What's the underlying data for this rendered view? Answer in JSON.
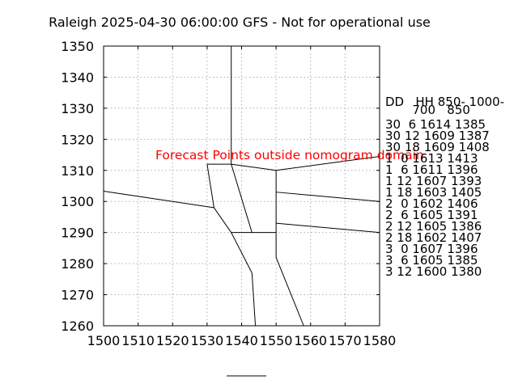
{
  "chart_data": {
    "type": "line",
    "title": "Raleigh 2025-04-30 06:00:00 GFS - Not for operational use",
    "xlim": [
      1500,
      1580
    ],
    "ylim": [
      1260,
      1350
    ],
    "x_ticks": [
      1500,
      1510,
      1520,
      1530,
      1540,
      1550,
      1560,
      1570,
      1580
    ],
    "y_ticks": [
      1260,
      1270,
      1280,
      1290,
      1300,
      1310,
      1320,
      1330,
      1340,
      1350
    ],
    "x_tick_labels": [
      "1500",
      "1510",
      "1520",
      "1530",
      "1540",
      "1550",
      "1560",
      "1570",
      "1580"
    ],
    "y_tick_labels": [
      "1260",
      "1270",
      "1280",
      "1290",
      "1300",
      "1310",
      "1320",
      "1330",
      "1340",
      "1350"
    ],
    "grid": true,
    "line_color": "#000000",
    "warning_color": "#ff0000",
    "nomogram_segments": [
      [
        [
          1537,
          1350
        ],
        [
          1537,
          1312
        ]
      ],
      [
        [
          1530,
          1312
        ],
        [
          1537,
          1312
        ]
      ],
      [
        [
          1537,
          1312
        ],
        [
          1550,
          1310
        ]
      ],
      [
        [
          1550,
          1310
        ],
        [
          1580,
          1314.5
        ]
      ],
      [
        [
          1537,
          1312
        ],
        [
          1543,
          1290
        ]
      ],
      [
        [
          1530,
          1312
        ],
        [
          1532,
          1298
        ]
      ],
      [
        [
          1500,
          1303.3
        ],
        [
          1532,
          1298
        ]
      ],
      [
        [
          1532,
          1298
        ],
        [
          1537,
          1290
        ]
      ],
      [
        [
          1537,
          1290
        ],
        [
          1550,
          1290
        ]
      ],
      [
        [
          1550,
          1310
        ],
        [
          1550,
          1282
        ]
      ],
      [
        [
          1550,
          1303
        ],
        [
          1580,
          1300
        ]
      ],
      [
        [
          1550,
          1293
        ],
        [
          1580,
          1290
        ]
      ],
      [
        [
          1537,
          1290
        ],
        [
          1543,
          1277
        ]
      ],
      [
        [
          1543,
          1277
        ],
        [
          1544,
          1260
        ]
      ],
      [
        [
          1550,
          1282
        ],
        [
          1558,
          1260
        ]
      ]
    ],
    "annotation": "Forecast Points outside nomogram domain",
    "table_header": [
      "DD   HH 850- 1000-",
      "       700   850"
    ],
    "table_rows": [
      "30  6 1614 1385",
      "30 12 1609 1387",
      "30 18 1609 1408",
      "1  0 1613 1413",
      "1  6 1611 1396",
      "1 12 1607 1393",
      "1 18 1603 1405",
      "2  0 1602 1406",
      "2  6 1605 1391",
      "2 12 1605 1386",
      "2 18 1602 1407",
      "3  0 1607 1396",
      "3  6 1605 1385",
      "3 12 1600 1380"
    ]
  }
}
